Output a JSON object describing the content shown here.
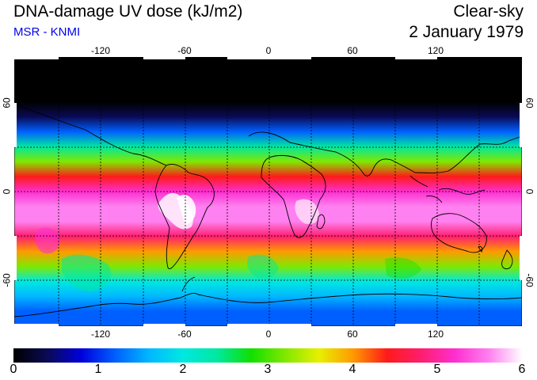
{
  "header": {
    "title": "DNA-damage UV dose (kJ/m2)",
    "credit": "MSR - KNMI",
    "condition": "Clear-sky",
    "date": "2 January 1979"
  },
  "colors": {
    "credit": "#0000ee",
    "palette": [
      "#000000",
      "#0a0a55",
      "#0000dd",
      "#0060ff",
      "#00b8ff",
      "#00e8e0",
      "#00e8a0",
      "#10e000",
      "#80e800",
      "#e8ef00",
      "#ff9a00",
      "#ff1a1a",
      "#ff1e6e",
      "#ff2ed0",
      "#ff80f0",
      "#ffffff"
    ]
  },
  "axes": {
    "longitude_ticks": [
      "-120",
      "-60",
      "0",
      "60",
      "120"
    ],
    "latitude_ticks": [
      "60",
      "0",
      "-60"
    ]
  },
  "colorbar": {
    "min": 0,
    "max": 6,
    "labels": [
      "0",
      "1",
      "2",
      "3",
      "4",
      "5",
      "6"
    ]
  },
  "chart_data": {
    "type": "heatmap",
    "title": "DNA-damage UV dose (kJ/m2)",
    "subtitle": "Clear-sky, 2 January 1979",
    "variable": "DNA-damage UV dose",
    "units": "kJ/m2",
    "lon_range": [
      -180,
      180
    ],
    "lat_range": [
      -90,
      90
    ],
    "grid": true,
    "latitude_profile": {
      "lat": [
        90,
        70,
        60,
        50,
        40,
        30,
        20,
        10,
        0,
        -10,
        -20,
        -30,
        -40,
        -50,
        -60,
        -70,
        -80,
        -90
      ],
      "value": [
        0,
        0,
        0.1,
        0.5,
        1.2,
        2.2,
        3.2,
        4.3,
        5.0,
        5.5,
        5.4,
        4.8,
        4.0,
        3.0,
        2.0,
        1.6,
        1.4,
        1.3
      ]
    },
    "colorbar_range": [
      0,
      6
    ]
  }
}
